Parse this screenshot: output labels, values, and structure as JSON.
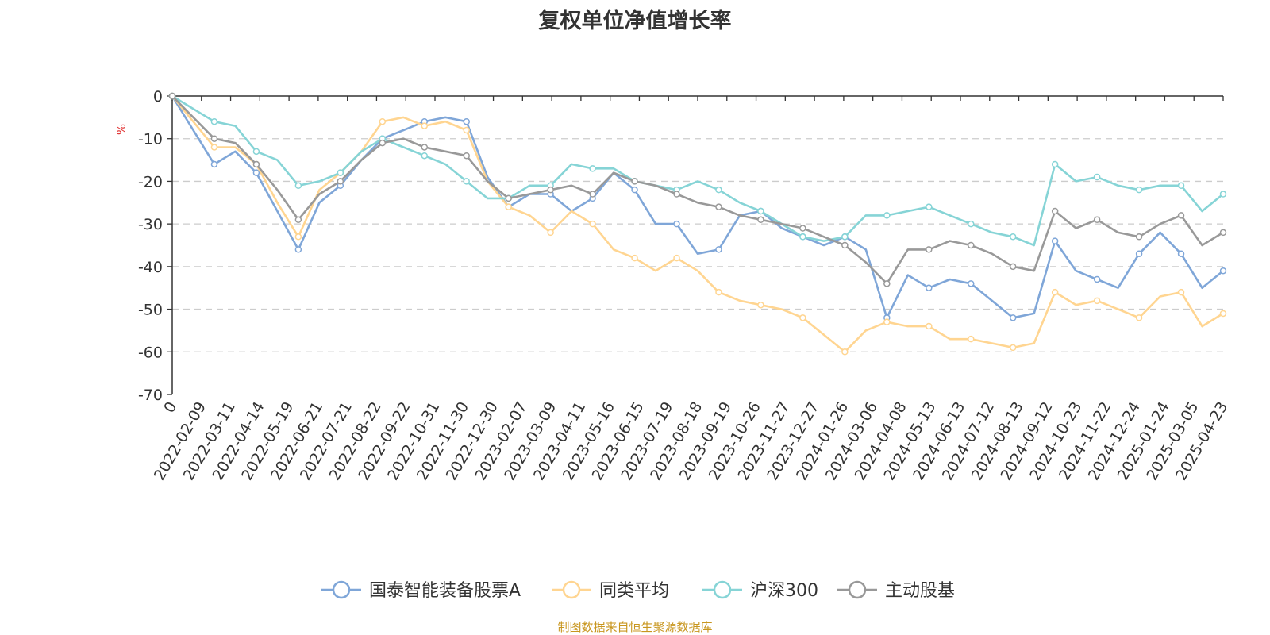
{
  "title": "复权单位净值增长率",
  "source": "制图数据来自恒生聚源数据库",
  "chart_data": {
    "type": "line",
    "title": "复权单位净值增长率",
    "ylabel": "%",
    "ylim": [
      -70,
      0
    ],
    "yticks": [
      "0",
      "-10",
      "-20",
      "-30",
      "-40",
      "-50",
      "-60",
      "-70"
    ],
    "x_tick_labels": [
      "0",
      "2022-02-09",
      "2022-03-11",
      "2022-04-14",
      "2022-05-19",
      "2022-06-21",
      "2022-07-21",
      "2022-08-22",
      "2022-09-22",
      "2022-10-31",
      "2022-11-30",
      "2022-12-30",
      "2023-02-07",
      "2023-03-09",
      "2023-04-11",
      "2023-05-16",
      "2023-06-15",
      "2023-07-19",
      "2023-08-18",
      "2023-09-19",
      "2023-10-26",
      "2023-11-27",
      "2023-12-27",
      "2024-01-26",
      "2024-03-06",
      "2024-04-08",
      "2024-05-13",
      "2024-06-13",
      "2024-07-12",
      "2024-08-13",
      "2024-09-12",
      "2024-10-23",
      "2024-11-22",
      "2024-12-24",
      "2025-01-24",
      "2025-03-05",
      "2025-04-23"
    ],
    "grid": true,
    "legend_position": "bottom",
    "series": [
      {
        "name": "国泰智能装备股票A",
        "color": "#7fa6d8",
        "values": [
          0,
          -8,
          -16,
          -13,
          -18,
          -27,
          -36,
          -25,
          -21,
          -15,
          -10,
          -8,
          -6,
          -5,
          -6,
          -19,
          -26,
          -23,
          -23,
          -27,
          -24,
          -18,
          -22,
          -30,
          -30,
          -37,
          -36,
          -28,
          -27,
          -31,
          -33,
          -35,
          -33,
          -36,
          -52,
          -42,
          -45,
          -43,
          -44,
          -48,
          -52,
          -51,
          -34,
          -41,
          -43,
          -45,
          -37,
          -32,
          -37,
          -45,
          -41
        ]
      },
      {
        "name": "同类平均",
        "color": "#ffd591",
        "values": [
          0,
          -6,
          -12,
          -12,
          -16,
          -25,
          -33,
          -22,
          -18,
          -13,
          -6,
          -5,
          -7,
          -6,
          -8,
          -20,
          -26,
          -28,
          -32,
          -27,
          -30,
          -36,
          -38,
          -41,
          -38,
          -41,
          -46,
          -48,
          -49,
          -50,
          -52,
          -56,
          -60,
          -55,
          -53,
          -54,
          -54,
          -57,
          -57,
          -58,
          -59,
          -58,
          -46,
          -49,
          -48,
          -50,
          -52,
          -47,
          -46,
          -54,
          -51
        ]
      },
      {
        "name": "沪深300",
        "color": "#86d4d6",
        "values": [
          0,
          -3,
          -6,
          -7,
          -13,
          -15,
          -21,
          -20,
          -18,
          -13,
          -10,
          -12,
          -14,
          -16,
          -20,
          -24,
          -24,
          -21,
          -21,
          -16,
          -17,
          -17,
          -20,
          -21,
          -22,
          -20,
          -22,
          -25,
          -27,
          -30,
          -33,
          -34,
          -33,
          -28,
          -28,
          -27,
          -26,
          -28,
          -30,
          -32,
          -33,
          -35,
          -16,
          -20,
          -19,
          -21,
          -22,
          -21,
          -21,
          -27,
          -23
        ]
      },
      {
        "name": "主动股基",
        "color": "#999999",
        "values": [
          0,
          -5,
          -10,
          -11,
          -16,
          -22,
          -29,
          -23,
          -20,
          -15,
          -11,
          -10,
          -12,
          -13,
          -14,
          -20,
          -24,
          -23,
          -22,
          -21,
          -23,
          -18,
          -20,
          -21,
          -23,
          -25,
          -26,
          -28,
          -29,
          -30,
          -31,
          -33,
          -35,
          -39,
          -44,
          -36,
          -36,
          -34,
          -35,
          -37,
          -40,
          -41,
          -27,
          -31,
          -29,
          -32,
          -33,
          -30,
          -28,
          -35,
          -32
        ]
      }
    ]
  }
}
